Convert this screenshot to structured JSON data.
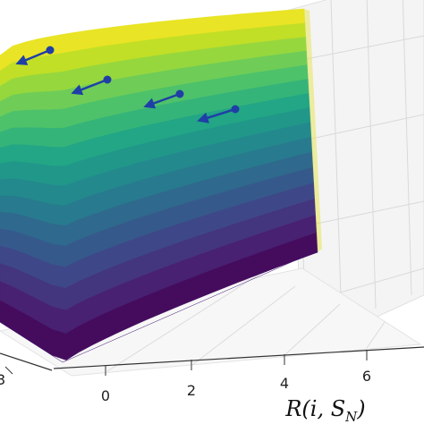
{
  "chart_data": {
    "type": "surface",
    "title": "",
    "xlabel": "R(i, S_N)",
    "x_ticks": [
      "0",
      "2",
      "4",
      "6"
    ],
    "y_ticks_partial": [
      "3"
    ],
    "grid": true,
    "colormap": "viridis",
    "colors": {
      "low": "#440154",
      "mid": "#21918c",
      "high": "#fde725",
      "arrow": "#1f3fa6",
      "grid": "#d9d9d9"
    },
    "arrows": [
      {
        "start_dot": true,
        "direction": "left-down"
      },
      {
        "start_dot": true,
        "direction": "left-down"
      },
      {
        "start_dot": true,
        "direction": "left-down"
      },
      {
        "start_dot": true,
        "direction": "left-down"
      }
    ]
  }
}
